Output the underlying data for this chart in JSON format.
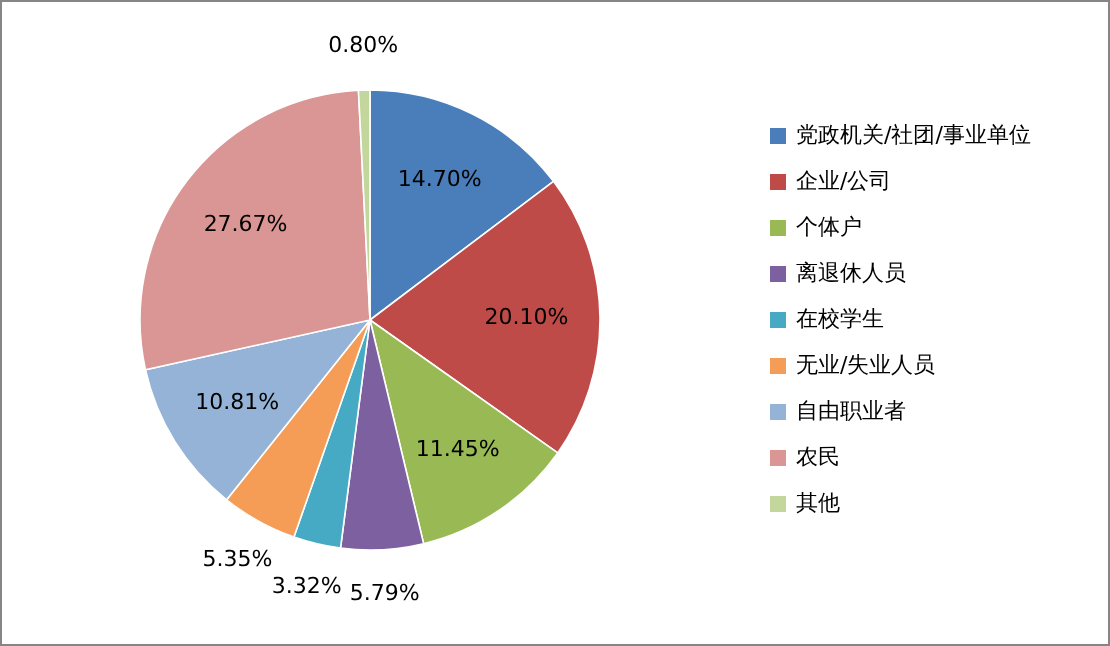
{
  "chart_data": {
    "type": "pie",
    "categories": [
      "党政机关/社团/事业单位",
      "企业/公司",
      "个体户",
      "离退休人员",
      "在校学生",
      "无业/失业人员",
      "自由职业者",
      "农民",
      "其他"
    ],
    "values": [
      14.7,
      20.1,
      11.45,
      5.79,
      3.32,
      5.35,
      10.81,
      27.67,
      0.8
    ],
    "value_labels": [
      "14.70%",
      "20.10%",
      "11.45%",
      "5.79%",
      "3.32%",
      "5.35%",
      "10.81%",
      "27.67%",
      "0.80%"
    ],
    "colors": [
      "#4a7ebb",
      "#be4b48",
      "#98b954",
      "#7d60a0",
      "#46aac5",
      "#f59d56",
      "#95b3d7",
      "#d99694",
      "#c3d69b"
    ],
    "legend": "right"
  }
}
